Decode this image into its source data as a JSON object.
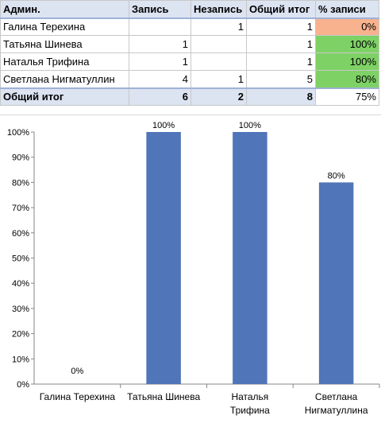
{
  "table": {
    "headers": [
      "Админ.",
      "Запись",
      "Незапись",
      "Общий итог",
      "% записи"
    ],
    "rows": [
      {
        "admin": "Галина Терехина",
        "zapis": "",
        "nezapis": "1",
        "total": "1",
        "pct": "0%",
        "pct_color": "#f8b28d"
      },
      {
        "admin": "Татьяна Шинева",
        "zapis": "1",
        "nezapis": "",
        "total": "1",
        "pct": "100%",
        "pct_color": "#7ed265"
      },
      {
        "admin": "Наталья Трифина",
        "zapis": "1",
        "nezapis": "",
        "total": "1",
        "pct": "100%",
        "pct_color": "#7ed265"
      },
      {
        "admin": "Светлана Нигматуллин",
        "zapis": "4",
        "nezapis": "1",
        "total": "5",
        "pct": "80%",
        "pct_color": "#7ed265"
      }
    ],
    "total": {
      "label": "Общий итог",
      "zapis": "6",
      "nezapis": "2",
      "total": "8",
      "pct": "75%"
    }
  },
  "chart_data": {
    "type": "bar",
    "categories": [
      [
        "Галина Терехина"
      ],
      [
        "Татьяна Шинева"
      ],
      [
        "Наталья",
        "Трифина"
      ],
      [
        "Светлана",
        "Нигматуллина"
      ]
    ],
    "values": [
      0,
      100,
      100,
      80
    ],
    "data_labels": [
      "0%",
      "100%",
      "100%",
      "80%"
    ],
    "y_ticks": [
      "0%",
      "10%",
      "20%",
      "30%",
      "40%",
      "50%",
      "60%",
      "70%",
      "80%",
      "90%",
      "100%"
    ],
    "ylim": [
      0,
      100
    ],
    "bar_color": "#5075b8",
    "grid": false,
    "legend": "none"
  }
}
